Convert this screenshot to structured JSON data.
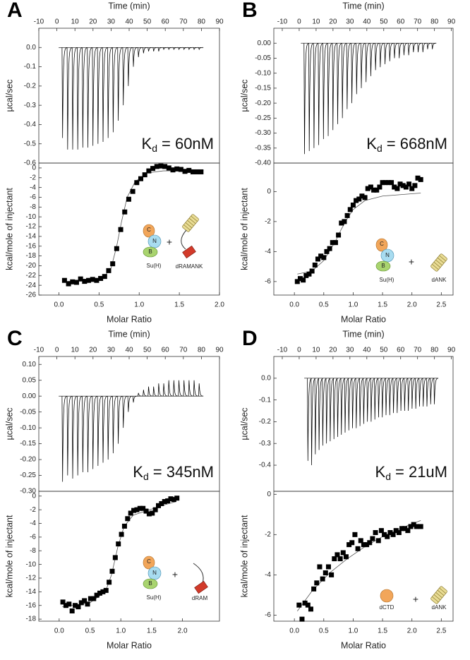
{
  "chart_data": [
    {
      "type": "spike",
      "panel": "A",
      "xlabel": "Time (min)",
      "ylabel": "µcal/sec",
      "xaxis": "top",
      "color": "#000000",
      "kd": {
        "symbol": "K",
        "subscript": "d",
        "text": "= 60nM"
      },
      "xlim": [
        -10,
        90
      ],
      "xticks": [
        -10,
        0,
        10,
        20,
        30,
        40,
        50,
        60,
        70,
        80,
        90
      ],
      "ylim": [
        -0.6,
        0.1
      ],
      "yticks": [
        {
          "value": 0,
          "label": "0.0"
        },
        -0.1,
        -0.2,
        -0.3,
        -0.4,
        -0.5,
        -0.6
      ],
      "x": [
        3,
        5.8,
        8.6,
        11.4,
        14.2,
        17,
        19.8,
        22.6,
        25.4,
        28.2,
        31,
        33.8,
        36.6,
        39.4,
        42.2,
        45,
        47.8,
        50.6,
        53.4,
        56.2,
        59,
        61.8,
        64.6,
        67.4,
        70.2,
        73,
        75.8,
        78.6
      ],
      "values": [
        -0.47,
        -0.53,
        -0.53,
        -0.53,
        -0.52,
        -0.52,
        -0.51,
        -0.5,
        -0.49,
        -0.47,
        -0.44,
        -0.38,
        -0.3,
        -0.2,
        -0.1,
        -0.05,
        -0.03,
        -0.02,
        -0.02,
        -0.02,
        -0.01,
        -0.01,
        -0.01,
        -0.01,
        -0.01,
        -0.01,
        -0.01,
        -0.01
      ]
    },
    {
      "type": "scatter",
      "xlabel": "Molar Ratio",
      "ylabel": "kcal/mole of injectant",
      "xaxis": "bottom",
      "color": "#000000",
      "cartoon": {
        "domains": [
          "C",
          "N",
          "B"
        ],
        "protein": "Su(H)",
        "plus": "+",
        "ligand": "dRAMANK"
      },
      "xlim": [
        -0.25,
        2.0
      ],
      "xticks": [
        {
          "value": 0,
          "label": "0.0"
        },
        0.5,
        {
          "value": 1,
          "label": "1.0"
        },
        1.5,
        {
          "value": 2,
          "label": "2.0"
        }
      ],
      "ylim": [
        -26,
        1
      ],
      "yticks": [
        0,
        -2,
        -4,
        -6,
        -8,
        -10,
        -12,
        -14,
        -16,
        -18,
        -20,
        -22,
        -24,
        -26
      ],
      "x": [
        0.07,
        0.12,
        0.17,
        0.22,
        0.27,
        0.32,
        0.37,
        0.42,
        0.47,
        0.52,
        0.57,
        0.62,
        0.67,
        0.72,
        0.77,
        0.82,
        0.87,
        0.92,
        0.97,
        1.02,
        1.07,
        1.12,
        1.17,
        1.22,
        1.27,
        1.32,
        1.37,
        1.42,
        1.47,
        1.52,
        1.57,
        1.62,
        1.67,
        1.72,
        1.77
      ],
      "values": [
        -23,
        -23.7,
        -23.3,
        -23.4,
        -22.7,
        -23.2,
        -23,
        -22.8,
        -23,
        -22.6,
        -22.2,
        -21,
        -19.6,
        -16.5,
        -12.6,
        -9,
        -6.4,
        -4.8,
        -3,
        -2.2,
        -1.4,
        -0.6,
        -0.1,
        0.3,
        0.4,
        0.3,
        0,
        -0.4,
        -0.2,
        -0.3,
        -0.7,
        -0.5,
        -0.8,
        -0.8,
        -0.8
      ],
      "fit": {
        "x": [
          0.05,
          0.4,
          0.55,
          0.65,
          0.72,
          0.78,
          0.85,
          0.95,
          1.1,
          1.3,
          1.8
        ],
        "values": [
          -23.2,
          -23.1,
          -22.5,
          -20.5,
          -16,
          -11,
          -6,
          -2.8,
          -1,
          -0.6,
          -0.5
        ]
      }
    },
    {
      "type": "spike",
      "panel": "B",
      "xlabel": "Time (min)",
      "ylabel": "µcal/sec",
      "xaxis": "top",
      "color": "#000000",
      "kd": {
        "symbol": "K",
        "subscript": "d",
        "text": "= 668nM"
      },
      "xlim": [
        -15,
        91
      ],
      "xticks": [
        -10,
        0,
        10,
        20,
        30,
        40,
        50,
        60,
        70,
        80,
        90
      ],
      "ylim": [
        -0.4,
        0.05
      ],
      "yticks": [
        {
          "value": 0,
          "label": "0.00"
        },
        -0.05,
        {
          "value": -0.1,
          "label": "-0.10"
        },
        -0.15,
        {
          "value": -0.2,
          "label": "-0.20"
        },
        -0.25,
        {
          "value": -0.3,
          "label": "-0.30"
        },
        -0.35,
        {
          "value": -0.4,
          "label": "-0.40"
        }
      ],
      "x": [
        3,
        5.8,
        8.6,
        11.4,
        14.2,
        17,
        19.8,
        22.6,
        25.4,
        28.2,
        31,
        33.8,
        36.6,
        39.4,
        42.2,
        45,
        47.8,
        50.6,
        53.4,
        56.2,
        59,
        61.8,
        64.6,
        67.4,
        70.2,
        73,
        75.8,
        78.6
      ],
      "values": [
        -0.37,
        -0.36,
        -0.35,
        -0.34,
        -0.32,
        -0.31,
        -0.29,
        -0.27,
        -0.25,
        -0.22,
        -0.2,
        -0.17,
        -0.15,
        -0.13,
        -0.11,
        -0.09,
        -0.08,
        -0.07,
        -0.06,
        -0.05,
        -0.05,
        -0.04,
        -0.04,
        -0.03,
        -0.03,
        -0.03,
        -0.02,
        -0.02
      ]
    },
    {
      "type": "scatter",
      "xlabel": "Molar Ratio",
      "ylabel": "kcal/mole of injectant",
      "xaxis": "bottom",
      "color": "#000000",
      "cartoon": {
        "domains": [
          "C",
          "N",
          "B"
        ],
        "protein": "Su(H)",
        "plus": "+",
        "ligand": "dANK"
      },
      "xlim": [
        -0.35,
        2.7
      ],
      "xticks": [
        {
          "value": 0,
          "label": "0.0"
        },
        0.5,
        {
          "value": 1,
          "label": "1.0"
        },
        1.5,
        {
          "value": 2,
          "label": "2.0"
        },
        2.5
      ],
      "ylim": [
        -6.9,
        1.9
      ],
      "yticks": [
        0,
        -2,
        -4,
        -6
      ],
      "x": [
        0.05,
        0.1,
        0.15,
        0.2,
        0.25,
        0.3,
        0.35,
        0.4,
        0.45,
        0.5,
        0.55,
        0.6,
        0.65,
        0.7,
        0.75,
        0.8,
        0.85,
        0.9,
        0.95,
        1.0,
        1.05,
        1.1,
        1.15,
        1.2,
        1.25,
        1.3,
        1.35,
        1.4,
        1.45,
        1.5,
        1.55,
        1.6,
        1.65,
        1.7,
        1.75,
        1.8,
        1.85,
        1.9,
        1.95,
        2.0,
        2.05,
        2.1,
        2.15
      ],
      "values": [
        -6.0,
        -5.8,
        -5.9,
        -5.6,
        -5.5,
        -5.3,
        -4.9,
        -4.5,
        -4.3,
        -4.4,
        -4.0,
        -3.8,
        -3.4,
        -3.4,
        -2.9,
        -2.1,
        -2.0,
        -1.6,
        -1.2,
        -0.9,
        -0.6,
        -0.5,
        -0.3,
        -0.4,
        0.2,
        0.3,
        0.1,
        0.1,
        0.3,
        0.6,
        0.6,
        0.6,
        0.6,
        0.3,
        0.2,
        0.5,
        0.4,
        0.3,
        0.5,
        0.2,
        0.4,
        0.9,
        0.8
      ],
      "fit": {
        "x": [
          0.05,
          0.3,
          0.5,
          0.7,
          0.8,
          0.9,
          1.0,
          1.2,
          1.5,
          2.15
        ],
        "values": [
          -5.5,
          -5.3,
          -4.6,
          -3.3,
          -2.5,
          -1.8,
          -1.2,
          -0.6,
          -0.3,
          -0.1
        ]
      }
    },
    {
      "type": "spike",
      "panel": "C",
      "xlabel": "Time (min)",
      "ylabel": "µcal/sec",
      "xaxis": "top",
      "color": "#000000",
      "kd": {
        "symbol": "K",
        "subscript": "d",
        "text": "= 345nM"
      },
      "xlim": [
        -10,
        90
      ],
      "xticks": [
        -10,
        0,
        10,
        20,
        30,
        40,
        50,
        60,
        70,
        80,
        90
      ],
      "ylim": [
        -0.3,
        0.125
      ],
      "yticks": [
        {
          "value": 0.1,
          "label": "0.10"
        },
        0.05,
        {
          "value": 0,
          "label": "0.00"
        },
        -0.05,
        {
          "value": -0.1,
          "label": "-0.10"
        },
        -0.15,
        {
          "value": -0.2,
          "label": "-0.20"
        },
        -0.25,
        {
          "value": -0.3,
          "label": "-0.30"
        }
      ],
      "x": [
        3,
        5.8,
        8.6,
        11.4,
        14.2,
        17,
        19.8,
        22.6,
        25.4,
        28.2,
        31,
        33.8,
        36.6,
        39.4,
        42.2,
        45,
        47.8,
        50.6,
        53.4,
        56.2,
        59,
        61.8,
        64.6,
        67.4,
        70.2,
        73,
        75.8,
        78.6
      ],
      "values": [
        -0.27,
        -0.25,
        -0.26,
        -0.25,
        -0.24,
        -0.24,
        -0.23,
        -0.22,
        -0.21,
        -0.2,
        -0.18,
        -0.15,
        -0.1,
        -0.05,
        -0.02,
        0.01,
        0.02,
        0.03,
        0.03,
        0.04,
        0.04,
        0.05,
        0.05,
        0.05,
        0.05,
        0.05,
        0.05,
        0.04
      ]
    },
    {
      "type": "scatter",
      "xlabel": "Molar Ratio",
      "ylabel": "kcal/mole of injectant",
      "xaxis": "bottom",
      "color": "#000000",
      "cartoon": {
        "domains": [
          "C",
          "N",
          "B"
        ],
        "protein": "Su(H)",
        "plus": "+",
        "ligand": "dRAM"
      },
      "xlim": [
        -0.33,
        2.6
      ],
      "xticks": [
        {
          "value": 0,
          "label": "0.0"
        },
        0.5,
        {
          "value": 1,
          "label": "1.0"
        },
        1.5,
        {
          "value": 2,
          "label": "2.0"
        }
      ],
      "ylim": [
        -18.3,
        0.7
      ],
      "yticks": [
        0,
        -2,
        -4,
        -6,
        -8,
        -10,
        -12,
        -14,
        -16,
        -18
      ],
      "x": [
        0.06,
        0.11,
        0.16,
        0.21,
        0.26,
        0.31,
        0.36,
        0.41,
        0.46,
        0.51,
        0.56,
        0.61,
        0.66,
        0.71,
        0.76,
        0.81,
        0.86,
        0.91,
        0.96,
        1.01,
        1.06,
        1.11,
        1.16,
        1.21,
        1.26,
        1.31,
        1.36,
        1.41,
        1.46,
        1.51,
        1.56,
        1.61,
        1.66,
        1.71,
        1.76,
        1.81,
        1.86,
        1.91
      ],
      "values": [
        -15.5,
        -16,
        -15.8,
        -16.8,
        -16,
        -16.2,
        -15.6,
        -15.3,
        -15.8,
        -15,
        -15,
        -14.5,
        -14.2,
        -14,
        -13.8,
        -12.6,
        -11,
        -9,
        -7,
        -5.6,
        -4.4,
        -3.3,
        -2.5,
        -2.1,
        -2,
        -1.8,
        -1.8,
        -2.2,
        -2.6,
        -2.5,
        -2,
        -1.4,
        -1.1,
        -0.8,
        -0.7,
        -0.4,
        -0.5,
        -0.3
      ],
      "fit": {
        "x": [
          0.05,
          0.5,
          0.75,
          0.85,
          0.95,
          1.05,
          1.2,
          1.4,
          1.7,
          1.9
        ],
        "values": [
          -16.2,
          -15.6,
          -14,
          -11.5,
          -7.5,
          -4.5,
          -2.8,
          -2.2,
          -1.3,
          -0.8
        ]
      }
    },
    {
      "type": "spike",
      "panel": "D",
      "xlabel": "Time (min)",
      "ylabel": "µcal/sec",
      "xaxis": "top",
      "color": "#000000",
      "kd": {
        "symbol": "K",
        "subscript": "d",
        "text": "= 21uM"
      },
      "xlim": [
        -15,
        91
      ],
      "xticks": [
        -10,
        0,
        10,
        20,
        30,
        40,
        50,
        60,
        70,
        80,
        90
      ],
      "ylim": [
        -0.52,
        0.1
      ],
      "yticks": [
        {
          "value": 0,
          "label": "0.0"
        },
        -0.1,
        -0.2,
        -0.3,
        -0.4
      ],
      "x": [
        5,
        7.2,
        9.4,
        11.6,
        13.8,
        16,
        18.2,
        20.4,
        22.6,
        24.8,
        27,
        29.2,
        31.4,
        33.6,
        35.8,
        38,
        40.2,
        42.4,
        44.6,
        46.8,
        49,
        51.2,
        53.4,
        55.6,
        57.8,
        60,
        62.2,
        64.4,
        66.6,
        68.8,
        71,
        73.2,
        75.4,
        77.6,
        79.8
      ],
      "values": [
        -0.38,
        -0.4,
        -0.35,
        -0.33,
        -0.31,
        -0.3,
        -0.29,
        -0.28,
        -0.27,
        -0.26,
        -0.25,
        -0.24,
        -0.23,
        -0.23,
        -0.22,
        -0.21,
        -0.2,
        -0.2,
        -0.19,
        -0.18,
        -0.18,
        -0.17,
        -0.17,
        -0.16,
        -0.16,
        -0.15,
        -0.15,
        -0.15,
        -0.14,
        -0.14,
        -0.13,
        -0.13,
        -0.13,
        -0.12,
        -0.12
      ]
    },
    {
      "type": "scatter",
      "xlabel": "Molar Ratio",
      "ylabel": "kcal/mole of injectant",
      "xaxis": "bottom",
      "color": "#000000",
      "cartoon": {
        "protein": "dCTD",
        "plus": "+",
        "ligand": "dANK"
      },
      "xlim": [
        -0.35,
        2.7
      ],
      "xticks": [
        {
          "value": 0,
          "label": "0.0"
        },
        0.5,
        {
          "value": 1,
          "label": "1.0"
        },
        1.5,
        {
          "value": 2,
          "label": "2.0"
        },
        2.5
      ],
      "ylim": [
        -6.3,
        0.15
      ],
      "yticks": [
        0,
        -2,
        -4,
        -6
      ],
      "x": [
        0.08,
        0.13,
        0.18,
        0.23,
        0.28,
        0.33,
        0.38,
        0.43,
        0.48,
        0.53,
        0.58,
        0.63,
        0.68,
        0.73,
        0.78,
        0.83,
        0.88,
        0.93,
        0.98,
        1.03,
        1.08,
        1.13,
        1.18,
        1.23,
        1.28,
        1.33,
        1.38,
        1.43,
        1.48,
        1.53,
        1.58,
        1.63,
        1.68,
        1.73,
        1.78,
        1.83,
        1.88,
        1.93,
        1.98,
        2.03,
        2.08,
        2.15
      ],
      "values": [
        -5.5,
        -6.2,
        -5.4,
        -5.5,
        -5.7,
        -4.7,
        -4.4,
        -3.6,
        -4.2,
        -3.9,
        -3.6,
        -4.0,
        -3.2,
        -3.0,
        -3.2,
        -2.9,
        -3.1,
        -2.5,
        -2.4,
        -2.0,
        -2.7,
        -2.3,
        -2.5,
        -2.5,
        -2.4,
        -2.2,
        -1.9,
        -2.3,
        -1.8,
        -2.0,
        -2.1,
        -1.9,
        -2.0,
        -1.8,
        -1.9,
        -1.7,
        -1.7,
        -1.8,
        -1.6,
        -1.5,
        -1.6,
        -1.6
      ],
      "fit": {
        "x": [
          0.05,
          0.3,
          0.6,
          0.9,
          1.2,
          1.5,
          1.8,
          2.15
        ],
        "values": [
          -5.8,
          -4.8,
          -3.9,
          -3.2,
          -2.6,
          -2.1,
          -1.7,
          -1.3
        ]
      }
    }
  ]
}
